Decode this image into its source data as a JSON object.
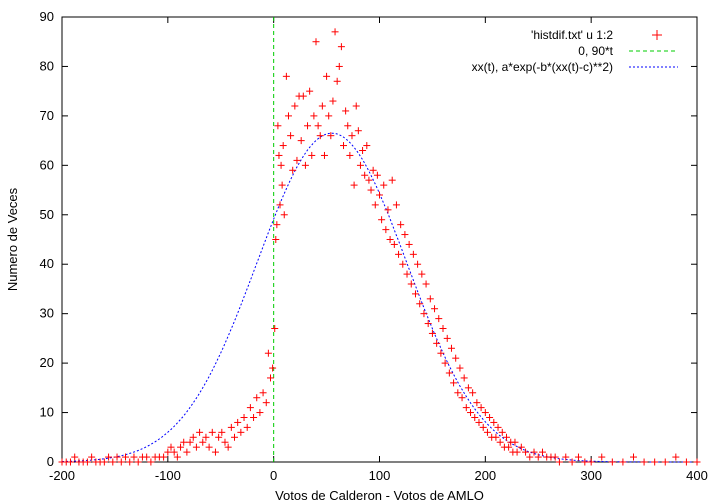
{
  "chart_data": {
    "type": "scatter",
    "xlabel": "Votos de Calderon - Votos de AMLO",
    "ylabel": "Numero de Veces",
    "xlim": [
      -200,
      400
    ],
    "ylim": [
      0,
      90
    ],
    "xticks": [
      "-200",
      "-100",
      "0",
      "100",
      "200",
      "300",
      "400"
    ],
    "yticks": [
      "0",
      "10",
      "20",
      "30",
      "40",
      "50",
      "60",
      "70",
      "80",
      "90"
    ],
    "grid": false,
    "legend_position": "top-right",
    "series": [
      {
        "name": "'histdif.txt' u 1:2",
        "style": "points",
        "marker": "+",
        "color": "#ff0000",
        "points": [
          [
            -200,
            0
          ],
          [
            -196,
            0
          ],
          [
            -192,
            0
          ],
          [
            -188,
            1
          ],
          [
            -184,
            0
          ],
          [
            -180,
            0
          ],
          [
            -176,
            0
          ],
          [
            -172,
            1
          ],
          [
            -168,
            0
          ],
          [
            -164,
            0
          ],
          [
            -160,
            0
          ],
          [
            -156,
            1
          ],
          [
            -152,
            0
          ],
          [
            -148,
            1
          ],
          [
            -144,
            0
          ],
          [
            -140,
            1
          ],
          [
            -136,
            0
          ],
          [
            -132,
            1
          ],
          [
            -128,
            0
          ],
          [
            -124,
            1
          ],
          [
            -120,
            1
          ],
          [
            -116,
            0
          ],
          [
            -112,
            1
          ],
          [
            -108,
            1
          ],
          [
            -104,
            1
          ],
          [
            -100,
            2
          ],
          [
            -97,
            3
          ],
          [
            -94,
            2
          ],
          [
            -91,
            1
          ],
          [
            -88,
            3
          ],
          [
            -85,
            4
          ],
          [
            -82,
            2
          ],
          [
            -79,
            4
          ],
          [
            -76,
            5
          ],
          [
            -73,
            3
          ],
          [
            -70,
            6
          ],
          [
            -67,
            4
          ],
          [
            -64,
            5
          ],
          [
            -61,
            3
          ],
          [
            -58,
            6
          ],
          [
            -55,
            2
          ],
          [
            -52,
            5
          ],
          [
            -49,
            6
          ],
          [
            -46,
            4
          ],
          [
            -43,
            3
          ],
          [
            -40,
            7
          ],
          [
            -37,
            5
          ],
          [
            -34,
            8
          ],
          [
            -31,
            6
          ],
          [
            -28,
            9
          ],
          [
            -25,
            7
          ],
          [
            -22,
            11
          ],
          [
            -19,
            9
          ],
          [
            -16,
            13
          ],
          [
            -13,
            10
          ],
          [
            -10,
            14
          ],
          [
            -7,
            12
          ],
          [
            -5,
            22
          ],
          [
            -3,
            17
          ],
          [
            -1,
            19
          ],
          [
            1,
            27
          ],
          [
            2,
            45
          ],
          [
            3,
            48
          ],
          [
            4,
            68
          ],
          [
            5,
            62
          ],
          [
            6,
            52
          ],
          [
            7,
            60
          ],
          [
            8,
            56
          ],
          [
            9,
            64
          ],
          [
            10,
            50
          ],
          [
            12,
            78
          ],
          [
            14,
            70
          ],
          [
            16,
            66
          ],
          [
            18,
            59
          ],
          [
            20,
            72
          ],
          [
            22,
            61
          ],
          [
            24,
            74
          ],
          [
            26,
            65
          ],
          [
            28,
            74
          ],
          [
            30,
            60
          ],
          [
            32,
            68
          ],
          [
            34,
            75
          ],
          [
            36,
            62
          ],
          [
            38,
            70
          ],
          [
            40,
            85
          ],
          [
            42,
            68
          ],
          [
            44,
            66
          ],
          [
            46,
            72
          ],
          [
            48,
            62
          ],
          [
            50,
            78
          ],
          [
            52,
            70
          ],
          [
            54,
            66
          ],
          [
            56,
            73
          ],
          [
            58,
            87
          ],
          [
            60,
            77
          ],
          [
            62,
            80
          ],
          [
            64,
            84
          ],
          [
            66,
            64
          ],
          [
            68,
            71
          ],
          [
            70,
            68
          ],
          [
            72,
            62
          ],
          [
            74,
            66
          ],
          [
            76,
            56
          ],
          [
            78,
            72
          ],
          [
            80,
            67
          ],
          [
            82,
            60
          ],
          [
            84,
            63
          ],
          [
            86,
            58
          ],
          [
            88,
            64
          ],
          [
            90,
            57
          ],
          [
            92,
            55
          ],
          [
            94,
            59
          ],
          [
            96,
            52
          ],
          [
            98,
            58
          ],
          [
            100,
            54
          ],
          [
            102,
            49
          ],
          [
            104,
            56
          ],
          [
            106,
            47
          ],
          [
            108,
            51
          ],
          [
            110,
            45
          ],
          [
            112,
            57
          ],
          [
            114,
            44
          ],
          [
            116,
            52
          ],
          [
            118,
            42
          ],
          [
            120,
            48
          ],
          [
            122,
            40
          ],
          [
            124,
            46
          ],
          [
            126,
            38
          ],
          [
            128,
            44
          ],
          [
            130,
            36
          ],
          [
            132,
            42
          ],
          [
            134,
            34
          ],
          [
            136,
            40
          ],
          [
            138,
            32
          ],
          [
            140,
            38
          ],
          [
            142,
            30
          ],
          [
            144,
            36
          ],
          [
            146,
            28
          ],
          [
            148,
            33
          ],
          [
            150,
            26
          ],
          [
            152,
            31
          ],
          [
            154,
            24
          ],
          [
            156,
            29
          ],
          [
            158,
            22
          ],
          [
            160,
            27
          ],
          [
            162,
            20
          ],
          [
            164,
            25
          ],
          [
            166,
            18
          ],
          [
            168,
            23
          ],
          [
            170,
            16
          ],
          [
            172,
            21
          ],
          [
            174,
            14
          ],
          [
            176,
            19
          ],
          [
            178,
            13
          ],
          [
            180,
            17
          ],
          [
            182,
            11
          ],
          [
            184,
            15
          ],
          [
            186,
            10
          ],
          [
            188,
            14
          ],
          [
            190,
            9
          ],
          [
            192,
            12
          ],
          [
            194,
            8
          ],
          [
            196,
            11
          ],
          [
            198,
            7
          ],
          [
            200,
            10
          ],
          [
            202,
            6
          ],
          [
            204,
            9
          ],
          [
            206,
            5
          ],
          [
            208,
            8
          ],
          [
            210,
            5
          ],
          [
            212,
            7
          ],
          [
            214,
            4
          ],
          [
            216,
            6
          ],
          [
            218,
            3
          ],
          [
            220,
            5
          ],
          [
            222,
            3
          ],
          [
            224,
            4
          ],
          [
            226,
            2
          ],
          [
            228,
            4
          ],
          [
            230,
            2
          ],
          [
            234,
            3
          ],
          [
            238,
            2
          ],
          [
            242,
            1
          ],
          [
            246,
            2
          ],
          [
            250,
            1
          ],
          [
            254,
            2
          ],
          [
            258,
            1
          ],
          [
            262,
            1
          ],
          [
            266,
            1
          ],
          [
            270,
            0
          ],
          [
            276,
            1
          ],
          [
            282,
            0
          ],
          [
            288,
            1
          ],
          [
            294,
            0
          ],
          [
            300,
            0
          ],
          [
            310,
            1
          ],
          [
            320,
            0
          ],
          [
            330,
            0
          ],
          [
            340,
            1
          ],
          [
            350,
            0
          ],
          [
            360,
            0
          ],
          [
            370,
            0
          ],
          [
            380,
            1
          ],
          [
            390,
            0
          ],
          [
            400,
            0
          ]
        ]
      },
      {
        "name": "0, 90*t",
        "style": "line",
        "dash": "dashed",
        "color": "#00cc00",
        "x": [
          0,
          0
        ],
        "y": [
          0,
          90
        ]
      },
      {
        "name": "xx(t), a*exp(-b*(xx(t)-c)**2)",
        "style": "line",
        "dash": "dotted",
        "color": "#0000ff",
        "amplitude": 66.5,
        "center": 55,
        "width_b": 0.0001,
        "x_range": [
          -200,
          400
        ]
      }
    ]
  }
}
